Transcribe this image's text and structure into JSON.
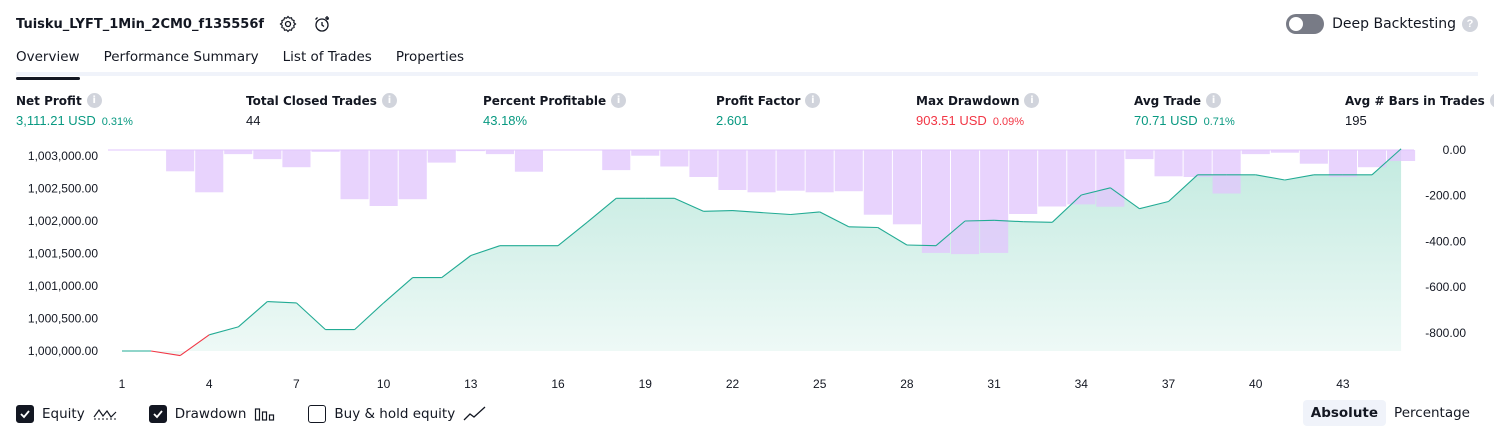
{
  "header": {
    "title": "Tuisku_LYFT_1Min_2CM0_f135556f",
    "settings_icon": "gear-icon",
    "alert_icon": "alarm-add-icon"
  },
  "deep_backtesting": {
    "label": "Deep Backtesting",
    "enabled": false,
    "help": "?"
  },
  "tabs": [
    {
      "label": "Overview",
      "active": true
    },
    {
      "label": "Performance Summary",
      "active": false
    },
    {
      "label": "List of Trades",
      "active": false
    },
    {
      "label": "Properties",
      "active": false
    }
  ],
  "metrics": {
    "net_profit": {
      "label": "Net Profit",
      "value": "3,111.21 USD",
      "pct": "0.31%"
    },
    "total_closed_trades": {
      "label": "Total Closed Trades",
      "value": "44"
    },
    "percent_profitable": {
      "label": "Percent Profitable",
      "value": "43.18%"
    },
    "profit_factor": {
      "label": "Profit Factor",
      "value": "2.601"
    },
    "max_drawdown": {
      "label": "Max Drawdown",
      "value": "903.51 USD",
      "pct": "0.09%"
    },
    "avg_trade": {
      "label": "Avg Trade",
      "value": "70.71 USD",
      "pct": "0.71%"
    },
    "avg_bars": {
      "label": "Avg # Bars in Trades",
      "value": "195"
    }
  },
  "colors": {
    "equity_line": "#22ab94",
    "equity_negative": "#f23645",
    "equity_fill_top": "#bfe9de",
    "drawdown_bar": "#e1c6fd",
    "overlap_bar": "#c7bdf0",
    "text": "#131722",
    "axis_text": "#131722"
  },
  "chart_data": {
    "type": "line",
    "x": [
      1,
      2,
      3,
      4,
      5,
      6,
      7,
      8,
      9,
      10,
      11,
      12,
      13,
      14,
      15,
      16,
      17,
      18,
      19,
      20,
      21,
      22,
      23,
      24,
      25,
      26,
      27,
      28,
      29,
      30,
      31,
      32,
      33,
      34,
      35,
      36,
      37,
      38,
      39,
      40,
      41,
      42,
      43,
      44,
      45
    ],
    "x_ticks": [
      "1",
      "4",
      "7",
      "10",
      "13",
      "16",
      "19",
      "22",
      "25",
      "28",
      "31",
      "34",
      "37",
      "40",
      "43"
    ],
    "series": [
      {
        "name": "Equity",
        "axis": "left",
        "values": [
          1000000,
          1000000,
          999930,
          1000250,
          1000370,
          1000760,
          1000740,
          1000330,
          1000330,
          1000740,
          1001130,
          1001130,
          1001470,
          1001620,
          1001620,
          1001620,
          1001980,
          1002350,
          1002350,
          1002350,
          1002150,
          1002160,
          1002130,
          1002100,
          1002140,
          1001910,
          1001900,
          1001630,
          1001620,
          1002000,
          1002010,
          1001990,
          1001980,
          1002400,
          1002510,
          1002190,
          1002300,
          1002710,
          1002710,
          1002710,
          1002630,
          1002710,
          1002710,
          1002710,
          1003110
        ]
      },
      {
        "name": "Drawdown",
        "axis": "right",
        "values": [
          0,
          0,
          -93,
          -185,
          -18,
          -40,
          -75,
          -8,
          -215,
          -245,
          -215,
          -55,
          -5,
          -18,
          -95,
          0,
          0,
          -88,
          -25,
          -72,
          -118,
          -175,
          -185,
          -178,
          -185,
          -180,
          -283,
          -325,
          -450,
          -455,
          -450,
          -280,
          -247,
          -238,
          -248,
          -40,
          -115,
          -118,
          -190,
          -18,
          -12,
          -60,
          -118,
          -75,
          -48
        ]
      }
    ],
    "left_axis": {
      "ticks": [
        "1,003,000.00",
        "1,002,500.00",
        "1,002,000.00",
        "1,001,500.00",
        "1,001,000.00",
        "1,000,500.00",
        "1,000,000.00"
      ],
      "range": [
        999700,
        1003100
      ]
    },
    "right_axis": {
      "ticks": [
        "0.00",
        "-200.00",
        "-400.00",
        "-600.00",
        "-800.00"
      ],
      "range": [
        -905,
        0
      ]
    },
    "legend": [
      {
        "label": "Equity",
        "checked": true,
        "icon": "equity-line-icon"
      },
      {
        "label": "Drawdown",
        "checked": true,
        "icon": "drawdown-bars-icon"
      },
      {
        "label": "Buy & hold equity",
        "checked": false,
        "icon": "buy-hold-line-icon"
      }
    ],
    "grid": false
  },
  "scale_toggle": {
    "absolute": "Absolute",
    "percentage": "Percentage",
    "selected": "Absolute"
  }
}
